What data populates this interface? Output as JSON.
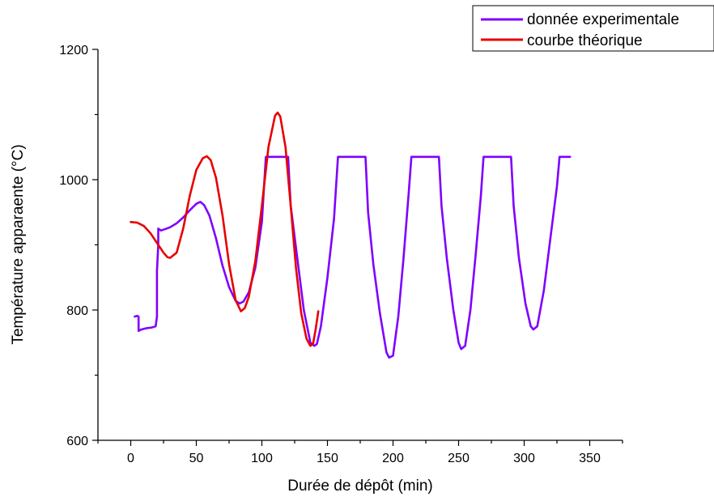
{
  "chart_data": {
    "type": "line",
    "title": "",
    "xlabel": "Durée de dépôt (min)",
    "ylabel": "Température apparaente (°C)",
    "xlim": [
      -25,
      375
    ],
    "ylim": [
      600,
      1200
    ],
    "x_ticks": [
      0,
      50,
      100,
      150,
      200,
      250,
      300,
      350
    ],
    "y_ticks": [
      600,
      800,
      1000,
      1200
    ],
    "legend_position": "top-right",
    "grid": false,
    "series": [
      {
        "name": "donnée experimentale",
        "color": "#7f00ff",
        "points": [
          [
            3,
            790
          ],
          [
            5,
            791
          ],
          [
            6,
            790
          ],
          [
            6,
            768
          ],
          [
            8,
            770
          ],
          [
            12,
            772
          ],
          [
            16,
            773
          ],
          [
            19,
            775
          ],
          [
            20,
            790
          ],
          [
            20,
            860
          ],
          [
            21,
            900
          ],
          [
            21,
            925
          ],
          [
            23,
            922
          ],
          [
            26,
            924
          ],
          [
            30,
            927
          ],
          [
            35,
            933
          ],
          [
            40,
            942
          ],
          [
            45,
            953
          ],
          [
            50,
            963
          ],
          [
            53,
            966
          ],
          [
            56,
            961
          ],
          [
            60,
            945
          ],
          [
            65,
            910
          ],
          [
            70,
            868
          ],
          [
            75,
            835
          ],
          [
            80,
            814
          ],
          [
            83,
            810
          ],
          [
            86,
            813
          ],
          [
            90,
            827
          ],
          [
            95,
            865
          ],
          [
            100,
            935
          ],
          [
            103,
            1035
          ],
          [
            108,
            1035
          ],
          [
            115,
            1035
          ],
          [
            120,
            1035
          ],
          [
            122,
            960
          ],
          [
            127,
            880
          ],
          [
            132,
            800
          ],
          [
            137,
            750
          ],
          [
            140,
            745
          ],
          [
            142,
            748
          ],
          [
            145,
            775
          ],
          [
            150,
            850
          ],
          [
            155,
            940
          ],
          [
            158,
            1035
          ],
          [
            170,
            1035
          ],
          [
            179,
            1035
          ],
          [
            181,
            950
          ],
          [
            185,
            870
          ],
          [
            190,
            795
          ],
          [
            195,
            735
          ],
          [
            197,
            727
          ],
          [
            200,
            730
          ],
          [
            204,
            790
          ],
          [
            208,
            880
          ],
          [
            212,
            980
          ],
          [
            214,
            1035
          ],
          [
            225,
            1035
          ],
          [
            235,
            1035
          ],
          [
            237,
            960
          ],
          [
            241,
            880
          ],
          [
            246,
            800
          ],
          [
            250,
            750
          ],
          [
            252,
            740
          ],
          [
            255,
            745
          ],
          [
            259,
            800
          ],
          [
            263,
            885
          ],
          [
            267,
            975
          ],
          [
            269,
            1035
          ],
          [
            280,
            1035
          ],
          [
            290,
            1035
          ],
          [
            292,
            960
          ],
          [
            296,
            880
          ],
          [
            301,
            810
          ],
          [
            305,
            775
          ],
          [
            307,
            770
          ],
          [
            310,
            775
          ],
          [
            315,
            830
          ],
          [
            320,
            910
          ],
          [
            325,
            990
          ],
          [
            327,
            1035
          ],
          [
            330,
            1035
          ],
          [
            335,
            1035
          ]
        ]
      },
      {
        "name": "courbe théorique",
        "color": "#e80000",
        "points": [
          [
            0,
            935
          ],
          [
            5,
            934
          ],
          [
            10,
            929
          ],
          [
            15,
            918
          ],
          [
            20,
            903
          ],
          [
            25,
            888
          ],
          [
            28,
            881
          ],
          [
            30,
            880
          ],
          [
            35,
            888
          ],
          [
            40,
            925
          ],
          [
            45,
            975
          ],
          [
            50,
            1015
          ],
          [
            55,
            1033
          ],
          [
            58,
            1036
          ],
          [
            61,
            1030
          ],
          [
            65,
            1003
          ],
          [
            70,
            945
          ],
          [
            75,
            870
          ],
          [
            80,
            815
          ],
          [
            84,
            798
          ],
          [
            87,
            803
          ],
          [
            90,
            820
          ],
          [
            95,
            875
          ],
          [
            100,
            960
          ],
          [
            105,
            1050
          ],
          [
            110,
            1098
          ],
          [
            112,
            1103
          ],
          [
            114,
            1097
          ],
          [
            118,
            1050
          ],
          [
            122,
            960
          ],
          [
            126,
            865
          ],
          [
            130,
            795
          ],
          [
            134,
            756
          ],
          [
            137,
            745
          ],
          [
            139,
            748
          ],
          [
            141,
            770
          ],
          [
            143,
            798
          ]
        ]
      }
    ]
  }
}
